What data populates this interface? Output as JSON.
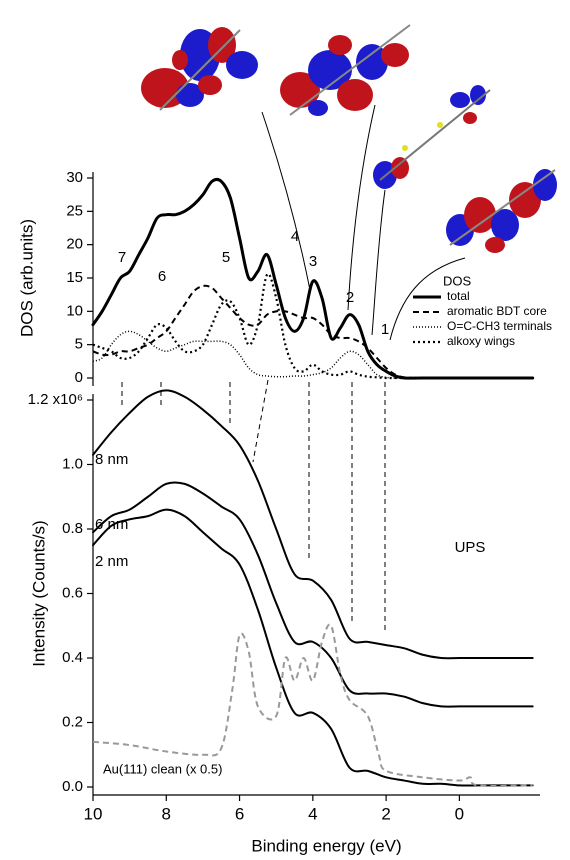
{
  "chart_data": [
    {
      "type": "line",
      "y_label": "DOS (arb.units)",
      "xlim": [
        10,
        -2.2
      ],
      "ylim": [
        0,
        30
      ],
      "yticks": [
        0,
        5,
        10,
        15,
        20,
        25,
        30
      ],
      "legend": "right",
      "legend_title": "DOS",
      "peak_labels": [
        "7",
        "6",
        "5",
        "4",
        "3",
        "2",
        "1"
      ],
      "x": [
        10,
        9.75,
        9.5,
        9.25,
        9,
        8.75,
        8.5,
        8.25,
        8,
        7.75,
        7.5,
        7.25,
        7,
        6.75,
        6.5,
        6.25,
        6,
        5.75,
        5.5,
        5.25,
        5,
        4.75,
        4.5,
        4.25,
        4,
        3.75,
        3.5,
        3.25,
        3,
        2.75,
        2.5,
        2.25,
        2,
        1.75,
        1.5,
        1,
        0,
        -1,
        -2
      ],
      "series": [
        {
          "name": "total",
          "color": "#000000",
          "style": "thick",
          "values": [
            8,
            10,
            12.5,
            15,
            16,
            18.5,
            21,
            24,
            24.5,
            24.5,
            25,
            26,
            27.5,
            29.5,
            29.5,
            27,
            21,
            15,
            16,
            18.5,
            14,
            9,
            7,
            9,
            14.5,
            12,
            6,
            7.5,
            9.5,
            8,
            4,
            2,
            1,
            0.3,
            0,
            0,
            0,
            0,
            0
          ]
        },
        {
          "name": "aromatic BDT core",
          "color": "#000000",
          "style": "dashed",
          "values": [
            4,
            3.5,
            3.5,
            4,
            4,
            4.5,
            5,
            6,
            7,
            9,
            11,
            13,
            13.8,
            13.5,
            12,
            10.5,
            9,
            8,
            8,
            9.5,
            10,
            10,
            9.5,
            9,
            9,
            8,
            6.5,
            6,
            6,
            5.5,
            4.5,
            3,
            1.5,
            0.5,
            0.1,
            0,
            0,
            0,
            0
          ]
        },
        {
          "name": "O=C-CH3 terminals",
          "color": "#000000",
          "style": "fine-dotted",
          "values": [
            2.5,
            3,
            5,
            6.5,
            7,
            6.5,
            5.5,
            4.5,
            4,
            4.5,
            5,
            5.5,
            5.5,
            5.5,
            5.5,
            5,
            3.5,
            1.5,
            0.5,
            0.3,
            0.2,
            0.2,
            0.3,
            0.3,
            0.5,
            0.8,
            1.5,
            3,
            4,
            3.5,
            2,
            0.5,
            0.1,
            0,
            0,
            0,
            0,
            0,
            0
          ]
        },
        {
          "name": "alkoxy wings",
          "color": "#000000",
          "style": "dotted",
          "values": [
            5,
            4.5,
            4,
            3,
            3,
            4,
            6,
            8,
            7.5,
            5.5,
            4,
            4,
            5,
            8,
            11,
            11.5,
            9,
            5,
            8,
            15.5,
            12,
            5,
            1.5,
            1,
            2,
            1,
            0.5,
            0.5,
            1,
            0.5,
            0.2,
            0.1,
            0,
            0,
            0,
            0,
            0,
            0,
            0
          ]
        }
      ]
    },
    {
      "type": "line",
      "x_label": "Binding energy (eV)",
      "y_label": "Intensity (Counts/s)",
      "annotation": "UPS",
      "xlim": [
        10,
        -2.2
      ],
      "xticks": [
        10,
        8,
        6,
        4,
        2,
        0
      ],
      "ylim": [
        0,
        1200000
      ],
      "yticks": [
        {
          "value": 0,
          "label": "0.0"
        },
        {
          "value": 200000,
          "label": "0.2"
        },
        {
          "value": 400000,
          "label": "0.4"
        },
        {
          "value": 600000,
          "label": "0.6"
        },
        {
          "value": 800000,
          "label": "0.8"
        },
        {
          "value": 1000000,
          "label": "1.0"
        },
        {
          "value": 1200000,
          "label": "1.2 x10⁶"
        }
      ],
      "x": [
        10,
        9.5,
        9,
        8.5,
        8,
        7.5,
        7,
        6.5,
        6,
        5.5,
        5,
        4.5,
        4,
        3.5,
        3,
        2.5,
        2,
        1.5,
        1,
        0.5,
        0,
        -0.5,
        -1,
        -1.5,
        -2
      ],
      "series": [
        {
          "name": "8 nm",
          "color": "#000000",
          "style": "solid",
          "values": [
            1030000,
            1100000,
            1160000,
            1210000,
            1230000,
            1210000,
            1170000,
            1120000,
            1060000,
            950000,
            800000,
            660000,
            640000,
            580000,
            460000,
            450000,
            440000,
            430000,
            410000,
            400000,
            400000,
            400000,
            400000,
            400000,
            400000
          ]
        },
        {
          "name": "6 nm",
          "color": "#000000",
          "style": "solid",
          "values": [
            790000,
            840000,
            860000,
            900000,
            940000,
            940000,
            910000,
            870000,
            830000,
            720000,
            570000,
            450000,
            450000,
            400000,
            300000,
            290000,
            290000,
            280000,
            260000,
            250000,
            250000,
            250000,
            250000,
            250000,
            250000
          ]
        },
        {
          "name": "2 nm",
          "color": "#000000",
          "style": "solid",
          "values": [
            750000,
            810000,
            830000,
            840000,
            860000,
            840000,
            790000,
            740000,
            690000,
            550000,
            370000,
            230000,
            230000,
            180000,
            60000,
            50000,
            30000,
            20000,
            10000,
            10000,
            5000,
            5000,
            5000,
            5000,
            5000
          ]
        },
        {
          "name": "Au(111) clean  (x 0.5)",
          "color": "#999999",
          "style": "dashed",
          "x": [
            10,
            9,
            8,
            7,
            6.5,
            6.2,
            6,
            5.75,
            5.5,
            5,
            4.75,
            4.5,
            4.25,
            4,
            3.75,
            3.5,
            3.25,
            3,
            2.5,
            2.2,
            2,
            1,
            0,
            -0.3,
            -0.5,
            -2
          ],
          "values": [
            140000,
            130000,
            110000,
            100000,
            120000,
            300000,
            470000,
            420000,
            250000,
            220000,
            400000,
            330000,
            400000,
            330000,
            450000,
            500000,
            350000,
            270000,
            220000,
            100000,
            50000,
            30000,
            20000,
            30000,
            5000,
            5000
          ]
        }
      ]
    }
  ]
}
